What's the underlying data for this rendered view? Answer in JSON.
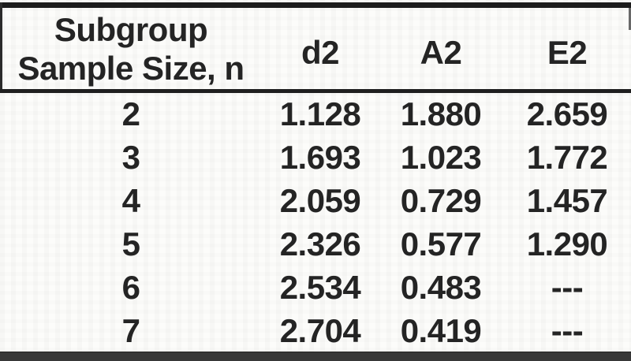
{
  "page": {
    "background": "#fcfcfa",
    "text_color": "#242424",
    "rule_color": "#1f1f1f",
    "bottom_rule_color": "#383838"
  },
  "header": {
    "col1_line1": "Subgroup",
    "col1_line2": "Sample Size, n",
    "col2": "d2",
    "col3": "A2",
    "col4": "E2"
  },
  "chart_data": {
    "type": "table",
    "columns": [
      "Subgroup Sample Size, n",
      "d2",
      "A2",
      "E2"
    ],
    "rows": [
      [
        "2",
        "1.128",
        "1.880",
        "2.659"
      ],
      [
        "3",
        "1.693",
        "1.023",
        "1.772"
      ],
      [
        "4",
        "2.059",
        "0.729",
        "1.457"
      ],
      [
        "5",
        "2.326",
        "0.577",
        "1.290"
      ],
      [
        "6",
        "2.534",
        "0.483",
        "---"
      ],
      [
        "7",
        "2.704",
        "0.419",
        "---"
      ]
    ]
  }
}
